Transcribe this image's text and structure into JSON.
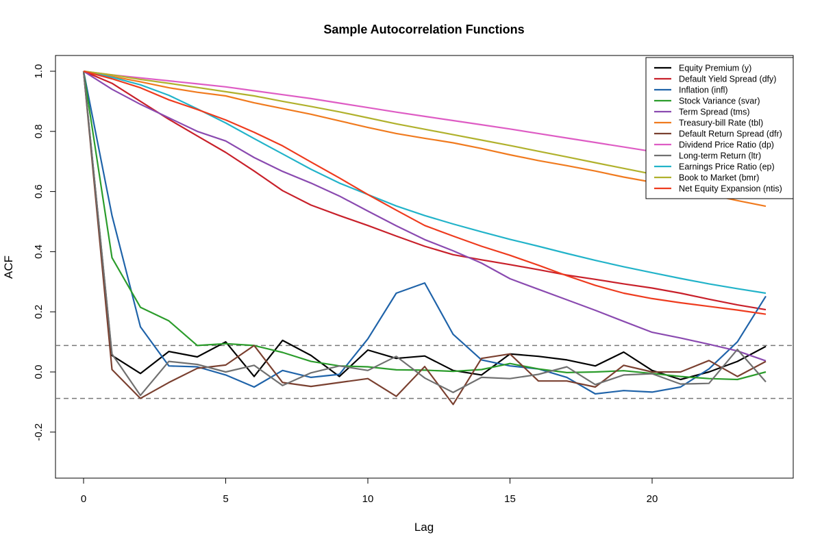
{
  "chart_data": {
    "type": "line",
    "title": "Sample Autocorrelation Functions",
    "xlabel": "Lag",
    "ylabel": "ACF",
    "xlim": [
      -1,
      25
    ],
    "ylim": [
      -0.35,
      1.05
    ],
    "xticks": [
      0,
      5,
      10,
      15,
      20
    ],
    "xtick_labels": [
      "0",
      "5",
      "10",
      "15",
      "20"
    ],
    "yticks": [
      -0.2,
      0.0,
      0.2,
      0.4,
      0.6,
      0.8,
      1.0
    ],
    "ytick_labels": [
      "-0.2",
      "0.0",
      "0.2",
      "0.4",
      "0.6",
      "0.8",
      "1.0"
    ],
    "confidence_bounds": [
      0.088,
      -0.088
    ],
    "legend_position": "top-right",
    "grid": false,
    "x": [
      0,
      1,
      2,
      3,
      4,
      5,
      6,
      7,
      8,
      9,
      10,
      11,
      12,
      13,
      14,
      15,
      16,
      17,
      18,
      19,
      20,
      21,
      22,
      23,
      24
    ],
    "series": [
      {
        "name": "Equity Premium (y)",
        "color": "#000000",
        "values": [
          1.0,
          0.055,
          -0.005,
          0.068,
          0.05,
          0.1,
          -0.015,
          0.105,
          0.055,
          -0.015,
          0.073,
          0.045,
          0.053,
          0.005,
          -0.01,
          0.06,
          0.052,
          0.04,
          0.02,
          0.066,
          0.005,
          -0.025,
          0.0,
          0.035,
          0.085
        ]
      },
      {
        "name": "Default Yield Spread (dfy)",
        "color": "#c8202a",
        "values": [
          1.0,
          0.96,
          0.9,
          0.84,
          0.785,
          0.73,
          0.668,
          0.603,
          0.555,
          0.52,
          0.487,
          0.452,
          0.418,
          0.39,
          0.373,
          0.357,
          0.34,
          0.322,
          0.308,
          0.293,
          0.279,
          0.262,
          0.242,
          0.223,
          0.207
        ]
      },
      {
        "name": "Inflation (infl)",
        "color": "#1f63a9",
        "values": [
          1.0,
          0.52,
          0.15,
          0.02,
          0.017,
          -0.01,
          -0.05,
          0.005,
          -0.018,
          -0.008,
          0.11,
          0.262,
          0.296,
          0.125,
          0.04,
          0.02,
          0.01,
          -0.018,
          -0.073,
          -0.062,
          -0.067,
          -0.05,
          0.01,
          0.1,
          0.252
        ]
      },
      {
        "name": "Stock Variance (svar)",
        "color": "#2b9c2b",
        "values": [
          1.0,
          0.38,
          0.215,
          0.17,
          0.088,
          0.094,
          0.088,
          0.065,
          0.035,
          0.02,
          0.017,
          0.007,
          0.006,
          0.002,
          0.008,
          0.028,
          0.01,
          -0.002,
          0.0,
          0.004,
          -0.005,
          -0.015,
          -0.022,
          -0.025,
          0.0
        ]
      },
      {
        "name": "Term Spread (tms)",
        "color": "#8a4ab0",
        "values": [
          1.0,
          0.94,
          0.89,
          0.845,
          0.8,
          0.768,
          0.713,
          0.667,
          0.628,
          0.585,
          0.535,
          0.486,
          0.44,
          0.403,
          0.362,
          0.31,
          0.275,
          0.24,
          0.205,
          0.168,
          0.132,
          0.113,
          0.092,
          0.07,
          0.037
        ]
      },
      {
        "name": "Treasury-bill Rate (tbl)",
        "color": "#f07a1e",
        "values": [
          1.0,
          0.983,
          0.965,
          0.945,
          0.93,
          0.918,
          0.895,
          0.876,
          0.857,
          0.835,
          0.813,
          0.793,
          0.777,
          0.762,
          0.743,
          0.722,
          0.703,
          0.686,
          0.668,
          0.648,
          0.631,
          0.611,
          0.59,
          0.57,
          0.551
        ]
      },
      {
        "name": "Default Return Spread (dfr)",
        "color": "#7a4030",
        "values": [
          1.0,
          0.008,
          -0.088,
          -0.035,
          0.012,
          0.023,
          0.088,
          -0.035,
          -0.048,
          -0.035,
          -0.022,
          -0.081,
          0.018,
          -0.108,
          0.045,
          0.06,
          -0.03,
          -0.03,
          -0.05,
          0.022,
          0.0,
          0.0,
          0.038,
          -0.015,
          0.035
        ]
      },
      {
        "name": "Dividend Price Ratio (dp)",
        "color": "#de5cc4",
        "values": [
          1.0,
          0.988,
          0.978,
          0.968,
          0.958,
          0.948,
          0.935,
          0.922,
          0.909,
          0.894,
          0.879,
          0.864,
          0.85,
          0.836,
          0.822,
          0.808,
          0.793,
          0.778,
          0.763,
          0.748,
          0.733,
          0.718,
          0.703,
          0.688,
          0.672
        ]
      },
      {
        "name": "Long-term Return (ltr)",
        "color": "#707070",
        "values": [
          1.0,
          0.06,
          -0.078,
          0.035,
          0.025,
          0.0,
          0.022,
          -0.045,
          -0.003,
          0.02,
          0.005,
          0.052,
          -0.02,
          -0.068,
          -0.018,
          -0.022,
          -0.008,
          0.017,
          -0.042,
          -0.01,
          -0.006,
          -0.04,
          -0.038,
          0.075,
          -0.033
        ]
      },
      {
        "name": "Earnings Price Ratio (ep)",
        "color": "#22b3c9",
        "values": [
          1.0,
          0.98,
          0.955,
          0.92,
          0.875,
          0.828,
          0.776,
          0.725,
          0.674,
          0.628,
          0.59,
          0.552,
          0.52,
          0.492,
          0.466,
          0.441,
          0.418,
          0.394,
          0.371,
          0.35,
          0.33,
          0.311,
          0.293,
          0.277,
          0.262
        ]
      },
      {
        "name": "Book to Market (bmr)",
        "color": "#b0b12c",
        "values": [
          1.0,
          0.988,
          0.973,
          0.96,
          0.946,
          0.932,
          0.918,
          0.9,
          0.883,
          0.865,
          0.845,
          0.825,
          0.807,
          0.789,
          0.771,
          0.753,
          0.734,
          0.715,
          0.696,
          0.677,
          0.658,
          0.639,
          0.62,
          0.601,
          0.582
        ]
      },
      {
        "name": "Net Equity Expansion (ntis)",
        "color": "#ee3b1e",
        "values": [
          1.0,
          0.975,
          0.945,
          0.905,
          0.873,
          0.838,
          0.797,
          0.752,
          0.698,
          0.645,
          0.59,
          0.538,
          0.487,
          0.452,
          0.418,
          0.388,
          0.355,
          0.32,
          0.288,
          0.262,
          0.244,
          0.23,
          0.218,
          0.206,
          0.192
        ]
      }
    ]
  }
}
